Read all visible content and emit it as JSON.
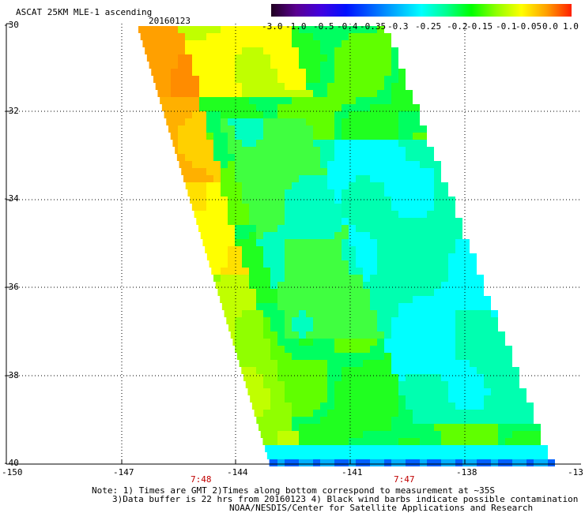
{
  "header": {
    "title": "ASCAT 25KM MLE-1 ascending",
    "date": "20160123"
  },
  "colorbar": {
    "labels": [
      "-3.0",
      "-1.0",
      "-0.5",
      "-0.4",
      "-0.35",
      "-0.3",
      "-0.25",
      "-0.2",
      "-0.15",
      "-0.1",
      "-0.05",
      "0.0",
      "1.0"
    ],
    "colors": [
      "#200020",
      "#5a0090",
      "#4000e0",
      "#0010ff",
      "#0060ff",
      "#00b0ff",
      "#00ffff",
      "#00ff90",
      "#00ff00",
      "#90ff00",
      "#ffff00",
      "#ffa000",
      "#ff2000"
    ]
  },
  "latitude_labels": [
    "-30",
    "-32",
    "-34",
    "-36",
    "-38",
    "-40"
  ],
  "longitude_labels": [
    "-150",
    "-147",
    "-144",
    "-141",
    "-138",
    "-13"
  ],
  "time_labels": [
    "7:48",
    "7:47"
  ],
  "notes": {
    "line1": "Note: 1) Times are GMT 2)Times along bottom correspond to measurement at ~35S",
    "line2": "3)Data buffer is 22 hrs from 20160123 4) Black wind barbs indicate possible contamination",
    "line3": "NOAA/NESDIS/Center for Satellite Applications and Research"
  }
}
